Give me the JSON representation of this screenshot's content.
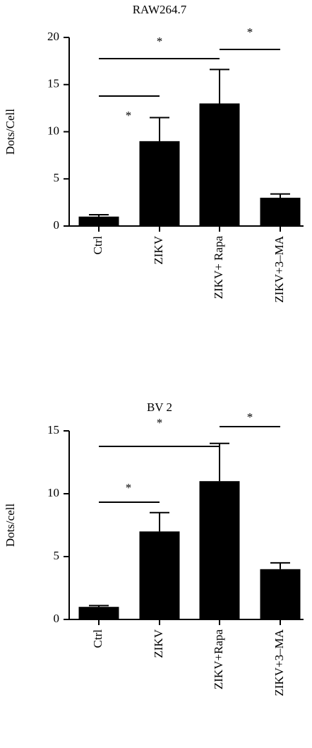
{
  "chart_data": [
    {
      "type": "bar",
      "title": "RAW264.7",
      "y_label": "Dots/Cell",
      "categories": [
        "Ctrl",
        "ZIKV",
        "ZIKV+ Rapa",
        "ZIKV+3–MA"
      ],
      "values": [
        1,
        9,
        13,
        3
      ],
      "errors": [
        0.2,
        2.5,
        3.6,
        0.4
      ],
      "color": "#000000",
      "ylim": [
        0,
        20
      ],
      "yticks": [
        0,
        5,
        10,
        15,
        20
      ],
      "annotations": [
        "*",
        "*",
        "*"
      ]
    },
    {
      "type": "bar",
      "title": "BV 2",
      "y_label": "Dots/cell",
      "categories": [
        "Ctrl",
        "ZIKV",
        "ZIKV+Rapa",
        "ZIKV+3–MA"
      ],
      "values": [
        1,
        7,
        11,
        4
      ],
      "errors": [
        0.1,
        1.5,
        3,
        0.5
      ],
      "color": "#000000",
      "ylim": [
        0,
        15
      ],
      "yticks": [
        0,
        5,
        10,
        15
      ],
      "annotations": [
        "*",
        "*",
        "*"
      ]
    }
  ]
}
